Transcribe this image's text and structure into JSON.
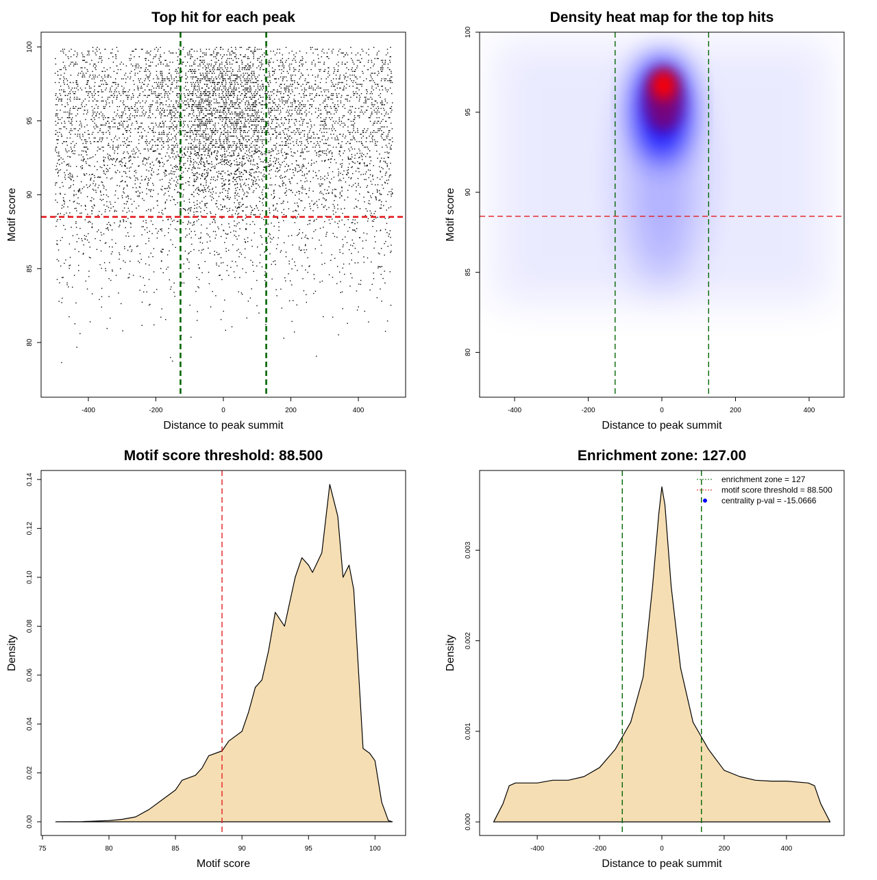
{
  "colors": {
    "fill": "#F5DEB3",
    "zone": "#006400",
    "threshold": "#E41A1C",
    "heat_low": "#FFFFFF",
    "heat_mid": "#0000FF",
    "heat_high": "#FF0000",
    "legend_point": "#0000FF"
  },
  "chart_data": [
    {
      "type": "scatter",
      "title": "Top hit for each peak",
      "xlabel": "Distance to peak summit",
      "ylabel": "Motif score",
      "xlim": [
        -540,
        540
      ],
      "ylim": [
        76.3,
        101
      ],
      "xticks": [
        -400,
        -200,
        0,
        200,
        400
      ],
      "yticks": [
        80,
        85,
        90,
        95,
        100
      ],
      "vlines": [
        -127,
        127
      ],
      "hline": 88.5,
      "binned_counts": {
        "x_bins": [
          -500,
          -400,
          -300,
          -200,
          -100,
          0,
          100,
          200,
          300,
          400,
          500
        ],
        "y_bins_lower": [
          99,
          98,
          97,
          96,
          95,
          94,
          93,
          92,
          91,
          90,
          89,
          88,
          87,
          86,
          85,
          84,
          83,
          82,
          81,
          80,
          79,
          78
        ],
        "counts": [
          [
            30,
            30,
            30,
            35,
            60,
            60,
            35,
            30,
            30,
            30
          ],
          [
            40,
            40,
            40,
            50,
            90,
            90,
            50,
            40,
            40,
            40
          ],
          [
            50,
            50,
            50,
            70,
            120,
            120,
            70,
            50,
            50,
            50
          ],
          [
            50,
            50,
            55,
            80,
            130,
            130,
            80,
            55,
            50,
            50
          ],
          [
            50,
            50,
            55,
            80,
            130,
            130,
            80,
            55,
            50,
            50
          ],
          [
            50,
            50,
            55,
            75,
            120,
            120,
            75,
            55,
            50,
            50
          ],
          [
            45,
            45,
            50,
            65,
            110,
            110,
            65,
            50,
            45,
            45
          ],
          [
            40,
            40,
            45,
            55,
            90,
            90,
            55,
            45,
            40,
            40
          ],
          [
            35,
            35,
            40,
            45,
            70,
            70,
            45,
            40,
            35,
            35
          ],
          [
            30,
            30,
            32,
            35,
            55,
            55,
            35,
            32,
            30,
            30
          ],
          [
            25,
            25,
            25,
            28,
            40,
            40,
            28,
            25,
            25,
            25
          ],
          [
            20,
            20,
            20,
            22,
            30,
            30,
            22,
            20,
            20,
            20
          ],
          [
            16,
            16,
            16,
            18,
            22,
            22,
            18,
            16,
            16,
            16
          ],
          [
            14,
            14,
            14,
            14,
            16,
            16,
            14,
            14,
            14,
            14
          ],
          [
            10,
            10,
            10,
            10,
            12,
            12,
            10,
            10,
            10,
            10
          ],
          [
            8,
            8,
            8,
            8,
            8,
            8,
            8,
            8,
            8,
            8
          ],
          [
            5,
            5,
            5,
            5,
            5,
            5,
            5,
            5,
            5,
            5
          ],
          [
            3,
            3,
            3,
            3,
            3,
            3,
            3,
            3,
            3,
            3
          ],
          [
            2,
            2,
            2,
            2,
            2,
            2,
            2,
            2,
            2,
            2
          ],
          [
            1,
            1,
            1,
            1,
            1,
            1,
            1,
            1,
            1,
            1
          ],
          [
            1,
            0,
            0,
            1,
            0,
            0,
            0,
            1,
            0,
            0
          ],
          [
            1,
            0,
            0,
            1,
            0,
            0,
            0,
            0,
            0,
            0
          ]
        ]
      }
    },
    {
      "type": "heatmap",
      "title": "Density heat map for the top hits",
      "xlabel": "Distance to peak summit",
      "ylabel": "Motif score",
      "xlim": [
        -495,
        495
      ],
      "ylim": [
        77.2,
        100
      ],
      "xticks": [
        -400,
        -200,
        0,
        200,
        400
      ],
      "yticks": [
        80,
        85,
        90,
        95,
        100
      ],
      "vlines": [
        -127,
        127
      ],
      "hline": 88.5,
      "density_peak": {
        "x": 5,
        "y": 96.7
      },
      "high_density_region": {
        "x": 0,
        "y": 95.2,
        "x_spread": 70,
        "y_spread": 3.2
      },
      "background_band": {
        "y_from": 83,
        "y_to": 99.5
      }
    },
    {
      "type": "area",
      "title": "Motif score threshold: 88.500",
      "xlabel": "Motif score",
      "ylabel": "Density",
      "xlim": [
        74.9,
        102.3
      ],
      "ylim": [
        -0.0056,
        0.1437
      ],
      "xticks": [
        75,
        80,
        85,
        90,
        95,
        100
      ],
      "yticks": [
        0.0,
        0.02,
        0.04,
        0.06,
        0.08,
        0.1,
        0.12,
        0.14
      ],
      "ytick_labels": [
        "0.00",
        "0.02",
        "0.04",
        "0.06",
        "0.08",
        "0.10",
        "0.12",
        "0.14"
      ],
      "vlines": [
        88.5
      ],
      "x": [
        76,
        78,
        80,
        81,
        82,
        83,
        84,
        85,
        85.5,
        86.5,
        87,
        87.5,
        88.5,
        89,
        90,
        90.5,
        91,
        91.5,
        92,
        92.5,
        93.2,
        94,
        94.5,
        95,
        95.3,
        96,
        96.6,
        97.2,
        97.6,
        98.05,
        98.4,
        99.1,
        99.6,
        100,
        100.5,
        101,
        101.3
      ],
      "y": [
        0,
        0.0001,
        0.0005,
        0.001,
        0.002,
        0.005,
        0.009,
        0.013,
        0.017,
        0.019,
        0.022,
        0.027,
        0.029,
        0.033,
        0.037,
        0.045,
        0.055,
        0.058,
        0.07,
        0.0857,
        0.08,
        0.1,
        0.108,
        0.105,
        0.102,
        0.11,
        0.138,
        0.125,
        0.1,
        0.105,
        0.095,
        0.03,
        0.028,
        0.025,
        0.008,
        0.0005,
        0
      ]
    },
    {
      "type": "area",
      "title": "Enrichment zone: 127.00",
      "xlabel": "Distance to peak summit",
      "ylabel": "Density",
      "xlim": [
        -585,
        585
      ],
      "ylim": [
        -0.00015,
        0.00388
      ],
      "xticks": [
        -400,
        -200,
        0,
        200,
        400
      ],
      "yticks": [
        0,
        0.001,
        0.002,
        0.003
      ],
      "ytick_labels": [
        "0.000",
        "0.001",
        "0.002",
        "0.003"
      ],
      "vlines": [
        -127,
        127
      ],
      "x": [
        -540,
        -510,
        -490,
        -470,
        -400,
        -350,
        -300,
        -250,
        -200,
        -150,
        -100,
        -60,
        -30,
        -10,
        0,
        10,
        30,
        60,
        100,
        150,
        200,
        250,
        300,
        350,
        400,
        470,
        490,
        510,
        540
      ],
      "y": [
        0,
        0.0002,
        0.0004,
        0.00043,
        0.00043,
        0.00046,
        0.00046,
        0.0005,
        0.0006,
        0.0008,
        0.0011,
        0.0016,
        0.0026,
        0.0034,
        0.0037,
        0.0035,
        0.0026,
        0.0017,
        0.0011,
        0.0008,
        0.00057,
        0.0005,
        0.00046,
        0.00045,
        0.00045,
        0.00043,
        0.0004,
        0.0002,
        0
      ],
      "legend": {
        "position": "top-right",
        "entries": [
          "enrichment zone = 127",
          "motif score threshold = 88.500",
          "centrality p-val = -15.0666"
        ]
      }
    }
  ]
}
